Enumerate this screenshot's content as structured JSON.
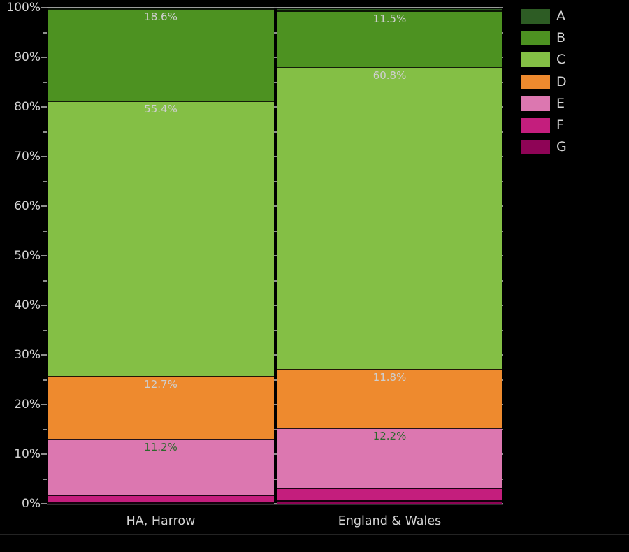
{
  "figure": {
    "background": "#000000",
    "text_color": "#d4d4d4",
    "spine_color": "#9c9c9c",
    "tick_color": "#8f8f8f"
  },
  "chart_data": {
    "type": "bar",
    "stacked": true,
    "orientation": "vertical",
    "title": "",
    "xlabel": "",
    "ylabel": "",
    "ylim": [
      0,
      100
    ],
    "grid": false,
    "legend_position": "top-right",
    "categories": [
      "HA, Harrow",
      "England & Wales"
    ],
    "y_major_tick_labels": [
      "0%",
      "10%",
      "20%",
      "30%",
      "40%",
      "50%",
      "60%",
      "70%",
      "80%",
      "90%",
      "100%"
    ],
    "y_major_step": 10,
    "y_minor_step": 5,
    "series": [
      {
        "name": "A",
        "color": "#2d5c24",
        "values": [
          0.2,
          0.5
        ],
        "labels": [
          "",
          ""
        ],
        "label_color": "#cfcfcf"
      },
      {
        "name": "B",
        "color": "#4d9221",
        "values": [
          18.6,
          11.5
        ],
        "labels": [
          "18.6%",
          "11.5%"
        ],
        "label_color": "#cfcfcf"
      },
      {
        "name": "C",
        "color": "#84bf45",
        "values": [
          55.4,
          60.8
        ],
        "labels": [
          "55.4%",
          "60.8%"
        ],
        "label_color": "#cfcfcf"
      },
      {
        "name": "D",
        "color": "#ee8a2e",
        "values": [
          12.7,
          11.8
        ],
        "labels": [
          "12.7%",
          "11.8%"
        ],
        "label_color": "#cfcfcf"
      },
      {
        "name": "E",
        "color": "#dc77b0",
        "values": [
          11.2,
          12.2
        ],
        "labels": [
          "11.2%",
          "12.2%"
        ],
        "label_color": "#2d682d"
      },
      {
        "name": "F",
        "color": "#c41e7d",
        "values": [
          1.6,
          2.5
        ],
        "labels": [
          "",
          ""
        ],
        "label_color": "#cfcfcf"
      },
      {
        "name": "G",
        "color": "#8e0456",
        "values": [
          0.3,
          0.7
        ],
        "labels": [
          "",
          ""
        ],
        "label_color": "#cfcfcf"
      }
    ],
    "legend_entries": [
      {
        "label": "A",
        "color": "#2d5c24"
      },
      {
        "label": "B",
        "color": "#4d9221"
      },
      {
        "label": "C",
        "color": "#84bf45"
      },
      {
        "label": "D",
        "color": "#ee8a2e"
      },
      {
        "label": "E",
        "color": "#dc77b0"
      },
      {
        "label": "F",
        "color": "#c41e7d"
      },
      {
        "label": "G",
        "color": "#8e0456"
      }
    ]
  }
}
